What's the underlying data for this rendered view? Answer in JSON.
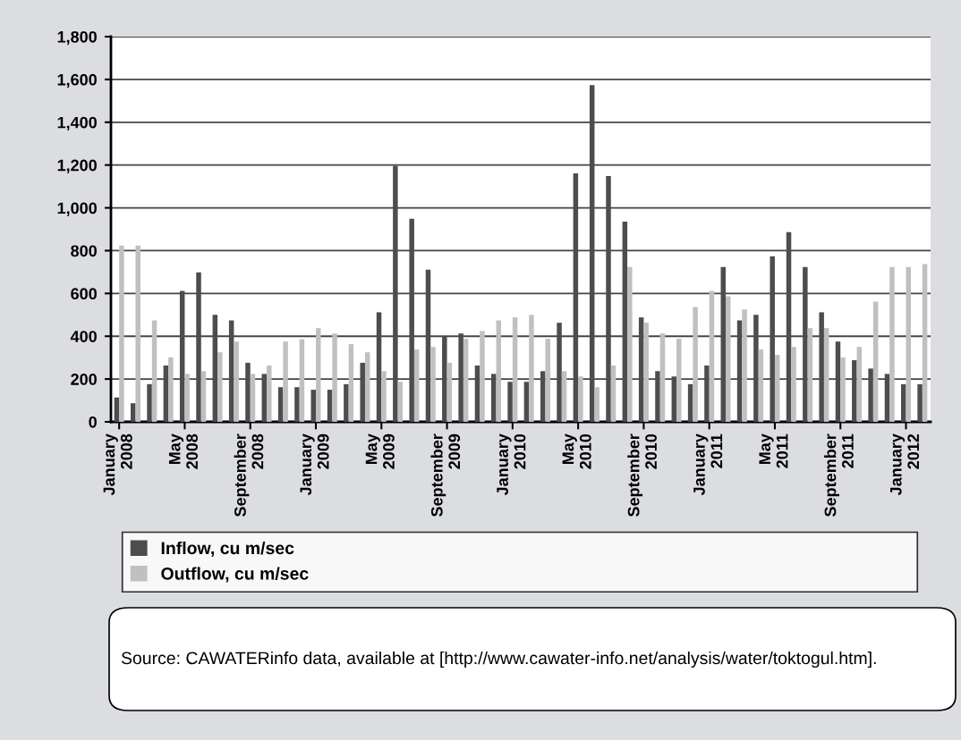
{
  "chart_data": {
    "type": "bar",
    "categories": [
      "January\n2008",
      null,
      null,
      null,
      "May\n2008",
      null,
      null,
      null,
      "September\n2008",
      null,
      null,
      null,
      "January\n2009",
      null,
      null,
      null,
      "May\n2009",
      null,
      null,
      null,
      "September\n2009",
      null,
      null,
      null,
      "January\n2010",
      null,
      null,
      null,
      "May\n2010",
      null,
      null,
      null,
      "September\n2010",
      null,
      null,
      null,
      "January\n2011",
      null,
      null,
      null,
      "May\n2011",
      null,
      null,
      null,
      "September\n2011",
      null,
      null,
      null,
      "January\n2012",
      null
    ],
    "series": [
      {
        "name": "Inflow, cu m/sec",
        "color": "#4d4d4d",
        "values": [
          114,
          87,
          176,
          263,
          612,
          699,
          500,
          474,
          276,
          224,
          162,
          162,
          150,
          150,
          176,
          276,
          512,
          1197,
          949,
          711,
          400,
          413,
          263,
          224,
          187,
          187,
          237,
          463,
          1161,
          1573,
          1148,
          936,
          488,
          237,
          212,
          176,
          263,
          724,
          474,
          500,
          774,
          886,
          724,
          512,
          375,
          288,
          249,
          224,
          176,
          176
        ]
      },
      {
        "name": "Outflow, cu m/sec",
        "color": "#c0c0c0",
        "values": [
          824,
          824,
          474,
          301,
          224,
          237,
          325,
          375,
          224,
          263,
          375,
          386,
          438,
          413,
          363,
          325,
          237,
          187,
          338,
          350,
          276,
          388,
          425,
          474,
          488,
          500,
          388,
          237,
          212,
          162,
          263,
          724,
          463,
          413,
          388,
          537,
          612,
          587,
          525,
          338,
          313,
          350,
          438,
          438,
          301,
          350,
          562,
          724,
          724,
          737
        ]
      }
    ],
    "ylim": [
      0,
      1800
    ],
    "yticks": [
      {
        "value": 0,
        "label": "0"
      },
      {
        "value": 200,
        "label": "200"
      },
      {
        "value": 400,
        "label": "400"
      },
      {
        "value": 600,
        "label": "600"
      },
      {
        "value": 800,
        "label": "800"
      },
      {
        "value": 1000,
        "label": "1,000"
      },
      {
        "value": 1200,
        "label": "1,200"
      },
      {
        "value": 1400,
        "label": "1,400"
      },
      {
        "value": 1600,
        "label": "1,600"
      },
      {
        "value": 1800,
        "label": "1,800"
      }
    ],
    "grid": "y",
    "legend": "bottom",
    "annotations": [
      "Source: CAWATERinfo data, available at [http://www.cawater-info.net/analysis/water/toktogul.htm]."
    ]
  }
}
